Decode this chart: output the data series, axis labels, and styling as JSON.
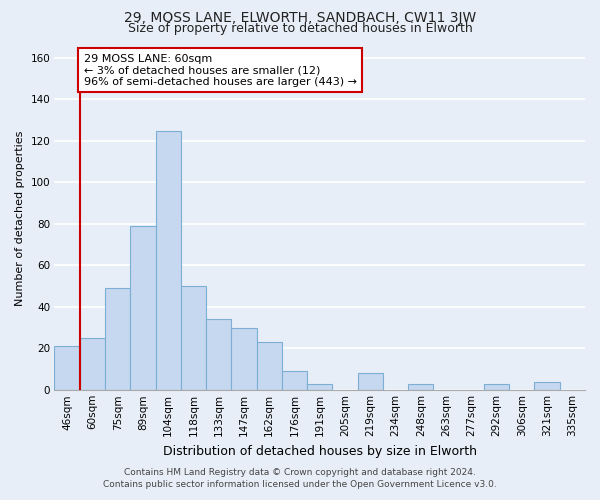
{
  "title1": "29, MOSS LANE, ELWORTH, SANDBACH, CW11 3JW",
  "title2": "Size of property relative to detached houses in Elworth",
  "xlabel": "Distribution of detached houses by size in Elworth",
  "ylabel": "Number of detached properties",
  "bin_labels": [
    "46sqm",
    "60sqm",
    "75sqm",
    "89sqm",
    "104sqm",
    "118sqm",
    "133sqm",
    "147sqm",
    "162sqm",
    "176sqm",
    "191sqm",
    "205sqm",
    "219sqm",
    "234sqm",
    "248sqm",
    "263sqm",
    "277sqm",
    "292sqm",
    "306sqm",
    "321sqm",
    "335sqm"
  ],
  "bin_values": [
    21,
    25,
    49,
    79,
    125,
    50,
    34,
    30,
    23,
    9,
    3,
    0,
    8,
    0,
    3,
    0,
    0,
    3,
    0,
    4,
    0
  ],
  "bar_color": "#c5d8ef",
  "bar_edge_color": "#7bafd4",
  "vline_x": 1.0,
  "vline_color": "#cc0000",
  "annotation_line1": "29 MOSS LANE: 60sqm",
  "annotation_line2": "← 3% of detached houses are smaller (12)",
  "annotation_line3": "96% of semi-detached houses are larger (443) →",
  "annotation_box_edge_color": "#cc0000",
  "ylim": [
    0,
    165
  ],
  "yticks": [
    0,
    20,
    40,
    60,
    80,
    100,
    120,
    140,
    160
  ],
  "footer_line1": "Contains HM Land Registry data © Crown copyright and database right 2024.",
  "footer_line2": "Contains public sector information licensed under the Open Government Licence v3.0.",
  "bg_color": "#e8eef7",
  "plot_bg_color": "#e8eef7",
  "grid_color": "#ffffff",
  "title1_fontsize": 10,
  "title2_fontsize": 9,
  "xlabel_fontsize": 9,
  "ylabel_fontsize": 8,
  "tick_fontsize": 7.5,
  "annotation_fontsize": 8,
  "footer_fontsize": 6.5
}
